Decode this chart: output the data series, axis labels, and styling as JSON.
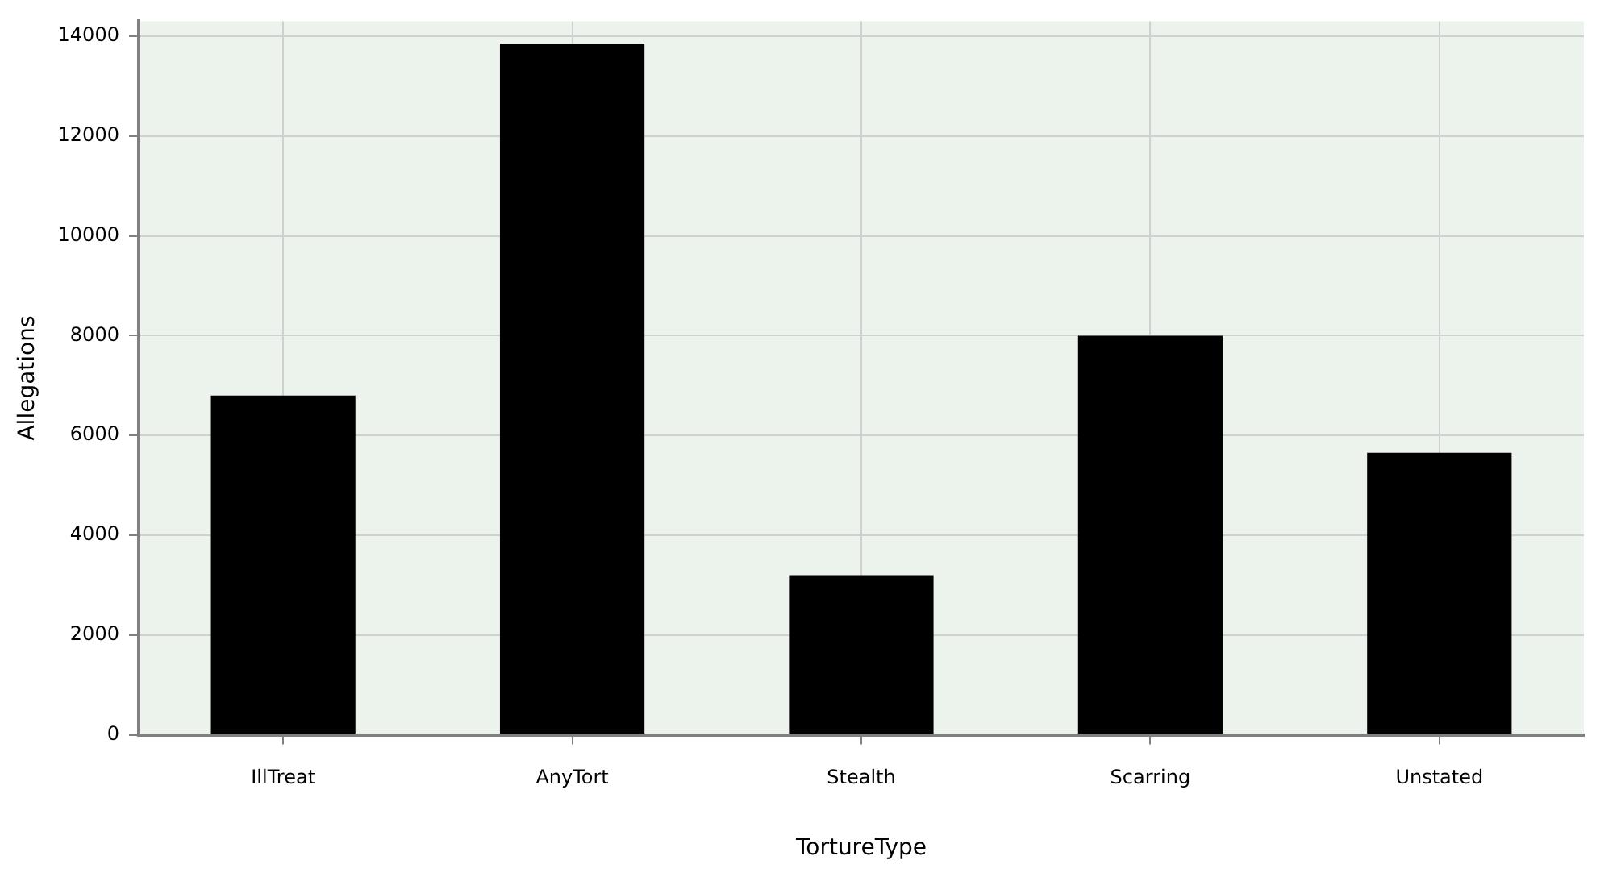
{
  "chart_data": {
    "type": "bar",
    "xlabel": "TortureType",
    "ylabel": "Allegations",
    "categories": [
      "IllTreat",
      "AnyTort",
      "Stealth",
      "Scarring",
      "Unstated"
    ],
    "values": [
      6800,
      13850,
      3200,
      8000,
      5650
    ],
    "color": "#000000",
    "ylim": [
      0,
      14300
    ],
    "yticks": [
      0,
      2000,
      4000,
      6000,
      8000,
      10000,
      12000,
      14000
    ],
    "grid": true
  }
}
